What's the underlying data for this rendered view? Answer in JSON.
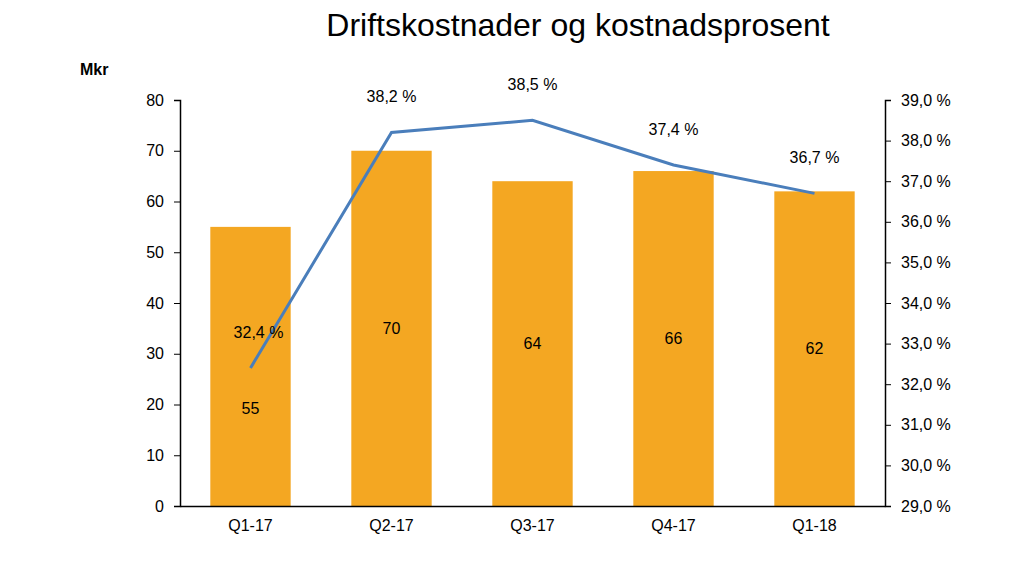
{
  "chart_data": {
    "type": "bar",
    "title": "Driftskostnader og kostnadsprosent",
    "ylabel": "Mkr",
    "categories": [
      "Q1-17",
      "Q2-17",
      "Q3-17",
      "Q4-17",
      "Q1-18"
    ],
    "series": [
      {
        "type": "bar",
        "color": "#f4a722",
        "values": [
          55,
          70,
          64,
          66,
          62
        ],
        "data_labels": true
      },
      {
        "type": "line",
        "axis": "y2",
        "color": "#4a7ebb",
        "values": [
          32.4,
          38.2,
          38.5,
          37.4,
          36.7
        ],
        "value_labels": [
          "32,4 %",
          "38,2 %",
          "38,5 %",
          "37,4 %",
          "36,7 %"
        ],
        "data_labels": true
      }
    ],
    "ylim": [
      0,
      80
    ],
    "yticks": [
      0,
      10,
      20,
      30,
      40,
      50,
      60,
      70,
      80
    ],
    "y2lim": [
      29,
      39
    ],
    "y2ticks": [
      {
        "value": 29,
        "label": "29,0 %"
      },
      {
        "value": 30,
        "label": "30,0 %"
      },
      {
        "value": 31,
        "label": "31,0 %"
      },
      {
        "value": 32,
        "label": "32,0 %"
      },
      {
        "value": 33,
        "label": "33,0 %"
      },
      {
        "value": 34,
        "label": "34,0 %"
      },
      {
        "value": 35,
        "label": "35,0 %"
      },
      {
        "value": 36,
        "label": "36,0 %"
      },
      {
        "value": 37,
        "label": "37,0 %"
      },
      {
        "value": 38,
        "label": "38,0 %"
      },
      {
        "value": 39,
        "label": "39,0 %"
      }
    ],
    "grid": false
  }
}
